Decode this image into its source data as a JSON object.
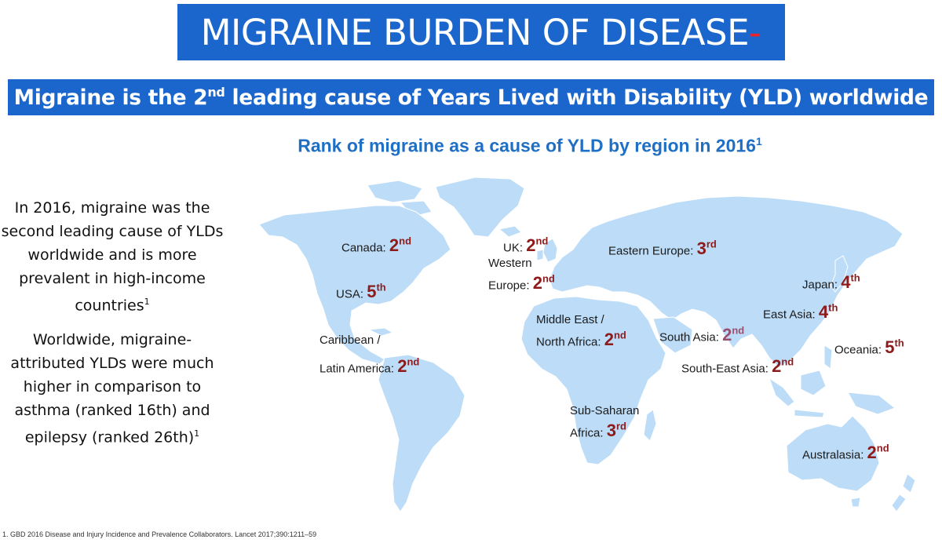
{
  "header": {
    "title": "MIGRAINE BURDEN OF DISEASE",
    "title_dash": "-",
    "subtitle_pre": "Migraine is the 2",
    "subtitle_sup": "nd",
    "subtitle_post": " leading cause of Years Lived with Disability (YLD) worldwide"
  },
  "map": {
    "title": "Rank of migraine as a cause of YLD by region in 2016",
    "title_sup": "1",
    "land_color": "#bcdcf7",
    "border_color": "#ffffff",
    "rank_color": "#8e1b1b"
  },
  "left_panel": {
    "para1": "In 2016, migraine was the second leading cause of YLDs worldwide and is more prevalent in high-income countries",
    "para1_sup": "1",
    "para2": "Worldwide, migraine-attributed YLDs were much higher in comparison to asthma (ranked 16th) and epilepsy (ranked 26th)",
    "para2_sup": "1"
  },
  "regions": [
    {
      "name": "Canada:",
      "rank": "2",
      "suffix": "nd"
    },
    {
      "name": "USA:",
      "rank": "5",
      "suffix": "th"
    },
    {
      "name": "UK:",
      "rank": "2",
      "suffix": "nd"
    },
    {
      "name": "Western",
      "name2": "Europe:",
      "rank": "2",
      "suffix": "nd"
    },
    {
      "name": "Eastern Europe:",
      "rank": "3",
      "suffix": "rd"
    },
    {
      "name": "Japan:",
      "rank": "4",
      "suffix": "th"
    },
    {
      "name": "East Asia:",
      "rank": "4",
      "suffix": "th"
    },
    {
      "name": "Caribbean /",
      "name2": "Latin America:",
      "rank": "2",
      "suffix": "nd"
    },
    {
      "name": "Middle East /",
      "name2": "North Africa:",
      "rank": "2",
      "suffix": "nd"
    },
    {
      "name": "South Asia:",
      "rank": "2",
      "suffix": "nd"
    },
    {
      "name": "Oceania:",
      "rank": "5",
      "suffix": "th"
    },
    {
      "name": "South-East Asia:",
      "rank": "2",
      "suffix": "nd"
    },
    {
      "name": "Sub-Saharan",
      "name2": "Africa:",
      "rank": "3",
      "suffix": "rd"
    },
    {
      "name": "Australasia:",
      "rank": "2",
      "suffix": "nd"
    }
  ],
  "footnote": "1. GBD 2016 Disease and Injury Incidence and Prevalence Collaborators. Lancet 2017;390:1211–59"
}
